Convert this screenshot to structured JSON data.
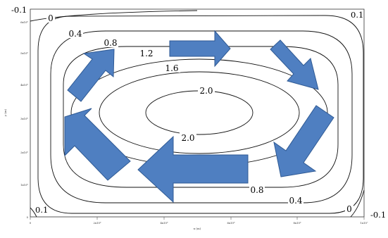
{
  "colors": {
    "arrow_fill": "#4f7fc1",
    "arrow_stroke": "#2f5a94",
    "contour_stroke": "#111111",
    "background": "#ffffff"
  },
  "contour_labels": {
    "c0_top": "0",
    "c04_top": "0.4",
    "c08_top": "0.8",
    "c12": "1.2",
    "c16": "1.6",
    "c20_upper": "2.0",
    "c20_lower": "2.0",
    "c08_bottom": "0.8",
    "c04_bottom": "0.4",
    "c0_bottom": "0"
  },
  "corner_labels": {
    "top_left": "-0.1",
    "top_right": "0.1",
    "bottom_left": "0.1",
    "bottom_right": "-0.1"
  },
  "axes": {
    "x_label": "x (m)",
    "y_label": "y (m)",
    "x_ticks": [
      "0",
      "2x10⁶",
      "4x10⁶",
      "6x10⁶",
      "8x10⁶",
      "1x10⁷"
    ],
    "y_ticks": [
      "6x10⁶",
      "5x10⁶",
      "4x10⁶",
      "3x10⁶",
      "2x10⁶",
      "1x10⁶",
      "0"
    ]
  },
  "arrows": [
    {
      "name": "arrow-top-right",
      "direction": "right"
    },
    {
      "name": "arrow-right-upper",
      "direction": "down-right"
    },
    {
      "name": "arrow-right-lower",
      "direction": "down-left"
    },
    {
      "name": "arrow-bottom",
      "direction": "left"
    },
    {
      "name": "arrow-left-lower",
      "direction": "up-left"
    },
    {
      "name": "arrow-left-upper",
      "direction": "up-right"
    }
  ]
}
